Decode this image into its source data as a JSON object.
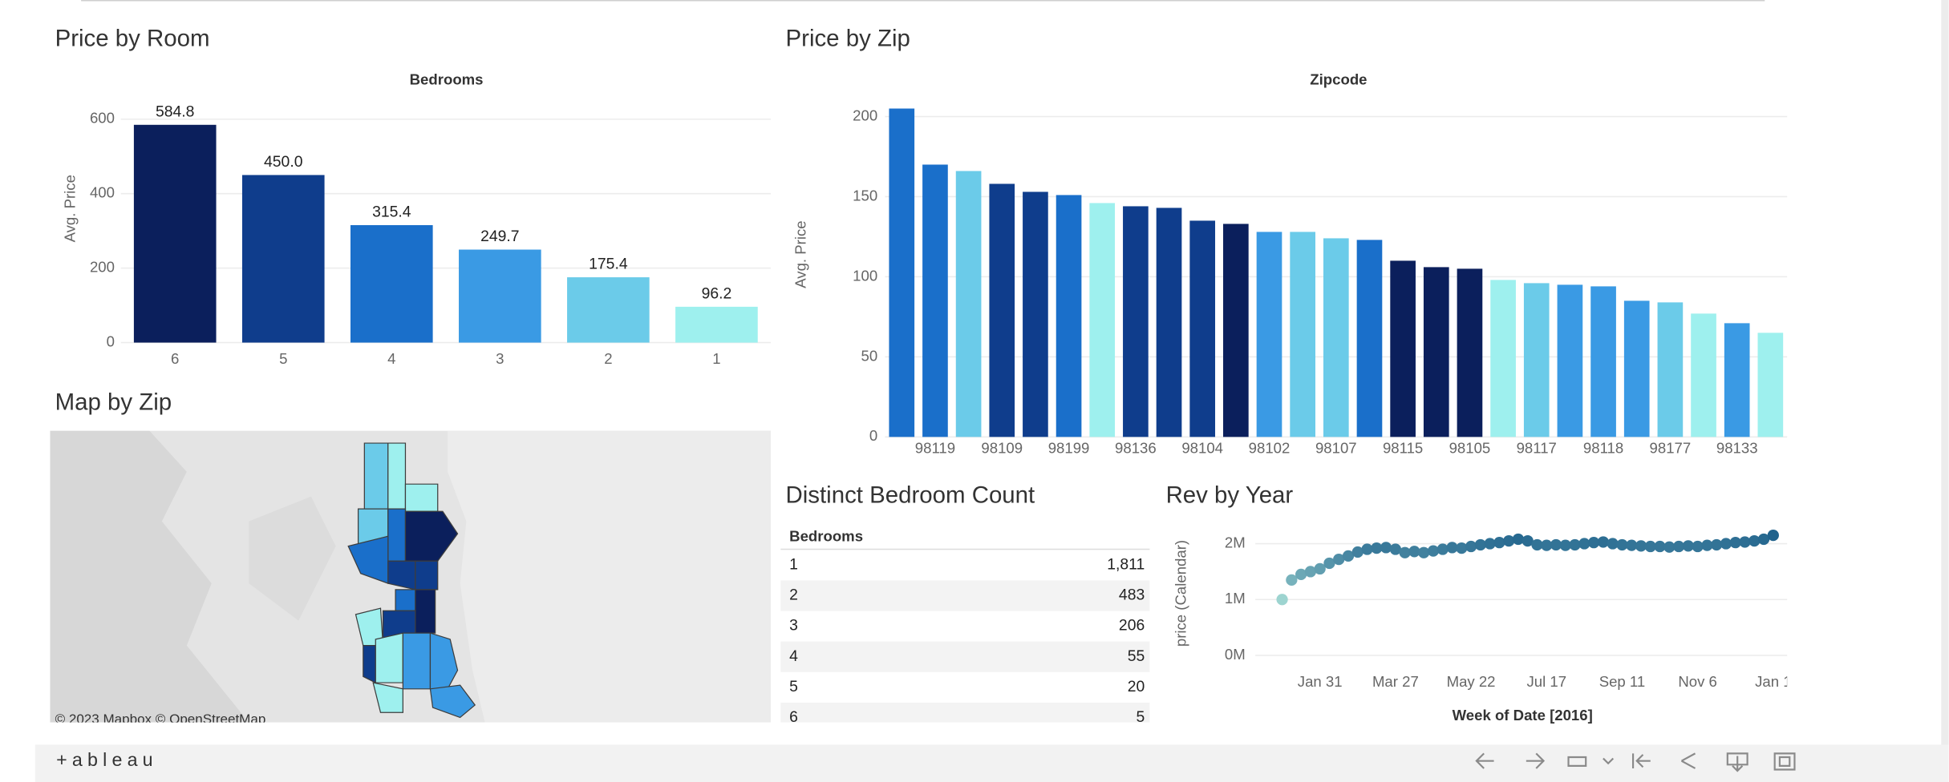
{
  "chart_data": [
    {
      "type": "bar",
      "title": "Price by Room",
      "x_header": "Bedrooms",
      "ylabel": "Avg. Price",
      "categories": [
        "6",
        "5",
        "4",
        "3",
        "2",
        "1"
      ],
      "values": [
        584.8,
        450.0,
        315.4,
        249.7,
        175.4,
        96.2
      ],
      "value_labels": [
        "584.8",
        "450.0",
        "315.4",
        "249.7",
        "175.4",
        "96.2"
      ],
      "colors": [
        "#0b1f5c",
        "#0f3d8c",
        "#1a6fca",
        "#3a9ae4",
        "#6bcbe9",
        "#9ef0ee"
      ],
      "ylim": [
        0,
        650
      ],
      "yticks": [
        0,
        200,
        400,
        600
      ],
      "grid": true
    },
    {
      "type": "bar",
      "title": "Price by Zip",
      "x_header": "Zipcode",
      "ylabel": "Avg. Price",
      "categories": [
        null,
        "98119",
        null,
        "98109",
        null,
        "98199",
        null,
        "98136",
        null,
        "98104",
        null,
        "98102",
        null,
        "98107",
        null,
        "98115",
        null,
        "98105",
        null,
        "98117",
        null,
        "98118",
        null,
        "98177",
        null,
        "98133",
        null
      ],
      "values": [
        205,
        170,
        166,
        158,
        153,
        151,
        146,
        144,
        143,
        135,
        133,
        128,
        128,
        124,
        123,
        110,
        106,
        105,
        98,
        96,
        95,
        94,
        85,
        84,
        77,
        71,
        65
      ],
      "colors": [
        "#1a6fca",
        "#1a6fca",
        "#6bcbe9",
        "#0f3d8c",
        "#0f3d8c",
        "#1a6fca",
        "#9ef0ee",
        "#0f3d8c",
        "#0f3d8c",
        "#0f3d8c",
        "#0b1f5c",
        "#3a9ae4",
        "#6bcbe9",
        "#6bcbe9",
        "#1a6fca",
        "#0b1f5c",
        "#0b1f5c",
        "#0b1f5c",
        "#9ef0ee",
        "#6bcbe9",
        "#3a9ae4",
        "#3a9ae4",
        "#3a9ae4",
        "#6bcbe9",
        "#9ef0ee",
        "#3a9ae4",
        "#9ef0ee"
      ],
      "ylim": [
        0,
        210
      ],
      "yticks": [
        0,
        50,
        100,
        150,
        200
      ],
      "grid": true
    },
    {
      "type": "dot",
      "title": "Rev by Year",
      "xlabel": "Week of Date [2016]",
      "ylabel": "price (Calendar)",
      "categories": [
        null,
        null,
        null,
        null,
        "Jan 31",
        null,
        null,
        null,
        null,
        null,
        null,
        null,
        "Mar 27",
        null,
        null,
        null,
        null,
        null,
        null,
        null,
        "May 22",
        null,
        null,
        null,
        null,
        null,
        null,
        null,
        "Jul 17",
        null,
        null,
        null,
        null,
        null,
        null,
        null,
        "Sep 11",
        null,
        null,
        null,
        null,
        null,
        null,
        null,
        "Nov 6",
        null,
        null,
        null,
        null,
        null,
        null,
        null,
        "Jan 1"
      ],
      "values": [
        1000000,
        1350000,
        1450000,
        1500000,
        1550000,
        1650000,
        1720000,
        1780000,
        1850000,
        1900000,
        1920000,
        1930000,
        1900000,
        1840000,
        1860000,
        1840000,
        1870000,
        1900000,
        1930000,
        1920000,
        1950000,
        1980000,
        2000000,
        2020000,
        2050000,
        2080000,
        2050000,
        1980000,
        1970000,
        1980000,
        1970000,
        1980000,
        2000000,
        2020000,
        2030000,
        2000000,
        1980000,
        1970000,
        1960000,
        1950000,
        1950000,
        1940000,
        1950000,
        1960000,
        1950000,
        1970000,
        1980000,
        2000000,
        2020000,
        2030000,
        2050000,
        2080000,
        2150000
      ],
      "color_range": [
        "#a6dcd5",
        "#1c5f8a"
      ],
      "ylim": [
        0,
        2300000
      ],
      "yticks": [
        {
          "value": 0,
          "label": "0M"
        },
        {
          "value": 1000000,
          "label": "1M"
        },
        {
          "value": 2000000,
          "label": "2M"
        }
      ],
      "grid": true
    }
  ],
  "map": {
    "title": "Map by Zip",
    "attribution": "© 2023 Mapbox  © OpenStreetMap"
  },
  "table": {
    "title": "Distinct Bedroom Count",
    "header": "Bedrooms",
    "rows": [
      [
        "1",
        "1,811"
      ],
      [
        "2",
        "483"
      ],
      [
        "3",
        "206"
      ],
      [
        "4",
        "55"
      ],
      [
        "5",
        "20"
      ],
      [
        "6",
        "5"
      ]
    ]
  },
  "toolbar": {
    "logo": "+ableau"
  }
}
